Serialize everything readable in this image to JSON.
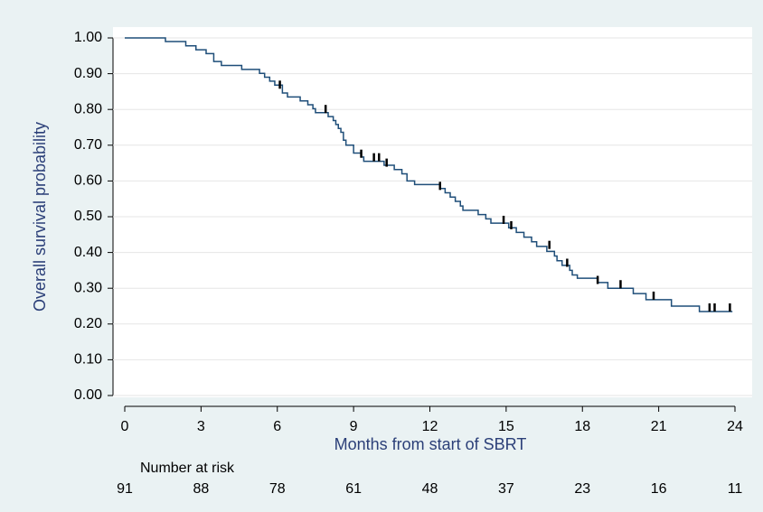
{
  "chart_data": {
    "type": "step",
    "xlabel": "Months from start of SBRT",
    "ylabel": "Overall survival probability",
    "color": "#1f4e79",
    "xlim": [
      0,
      24
    ],
    "ylim": [
      0,
      1
    ],
    "xticks": [
      0,
      3,
      6,
      9,
      12,
      15,
      18,
      21,
      24
    ],
    "yticks": [
      {
        "value": 0,
        "label": "0.00"
      },
      {
        "value": 0.1,
        "label": "0.10"
      },
      {
        "value": 0.2,
        "label": "0.20"
      },
      {
        "value": 0.3,
        "label": "0.30"
      },
      {
        "value": 0.4,
        "label": "0.40"
      },
      {
        "value": 0.5,
        "label": "0.50"
      },
      {
        "value": 0.6,
        "label": "0.60"
      },
      {
        "value": 0.7,
        "label": "0.70"
      },
      {
        "value": 0.8,
        "label": "0.80"
      },
      {
        "value": 0.9,
        "label": "0.90"
      },
      {
        "value": 1,
        "label": "1.00"
      }
    ],
    "grid": true,
    "series": [
      {
        "x": [
          0,
          1.6,
          2.4,
          2.8,
          3.2,
          3.5,
          3.8,
          4.6,
          5.3,
          5.5,
          5.7,
          5.9,
          6.2,
          6.4,
          6.9,
          7.2,
          7.4,
          7.5,
          8.0,
          8.2,
          8.3,
          8.4,
          8.5,
          8.6,
          8.7,
          9.0,
          9.3,
          9.4,
          10.2,
          10.6,
          10.9,
          11.1,
          11.4,
          12.4,
          12.6,
          12.8,
          13.0,
          13.2,
          13.3,
          13.9,
          14.2,
          14.4,
          15.1,
          15.4,
          15.7,
          16.0,
          16.2,
          16.6,
          16.9,
          17.0,
          17.2,
          17.5,
          17.6,
          17.8,
          18.6,
          19.0,
          20.0,
          20.5,
          21.5,
          22.6,
          23.9
        ],
        "values": [
          1.0,
          0.99,
          0.978,
          0.967,
          0.956,
          0.934,
          0.923,
          0.912,
          0.901,
          0.89,
          0.879,
          0.868,
          0.846,
          0.835,
          0.824,
          0.813,
          0.802,
          0.791,
          0.78,
          0.769,
          0.758,
          0.747,
          0.736,
          0.714,
          0.7,
          0.678,
          0.667,
          0.655,
          0.644,
          0.632,
          0.62,
          0.6,
          0.59,
          0.579,
          0.567,
          0.555,
          0.543,
          0.53,
          0.518,
          0.506,
          0.494,
          0.482,
          0.469,
          0.456,
          0.443,
          0.43,
          0.417,
          0.403,
          0.39,
          0.377,
          0.364,
          0.35,
          0.337,
          0.328,
          0.316,
          0.3,
          0.285,
          0.268,
          0.25,
          0.235,
          0.235
        ]
      }
    ],
    "censored": {
      "x": [
        6.1,
        7.9,
        9.3,
        9.8,
        10.0,
        10.3,
        12.4,
        14.9,
        15.2,
        16.7,
        17.4,
        18.6,
        19.5,
        20.8,
        23.0,
        23.2,
        23.8
      ],
      "values": [
        0.868,
        0.8,
        0.675,
        0.665,
        0.665,
        0.65,
        0.585,
        0.49,
        0.475,
        0.42,
        0.37,
        0.322,
        0.31,
        0.278,
        0.245,
        0.245,
        0.245
      ]
    },
    "risk_table": {
      "title": "Number at risk",
      "values": [
        91,
        88,
        78,
        61,
        48,
        37,
        23,
        16,
        11
      ]
    }
  }
}
